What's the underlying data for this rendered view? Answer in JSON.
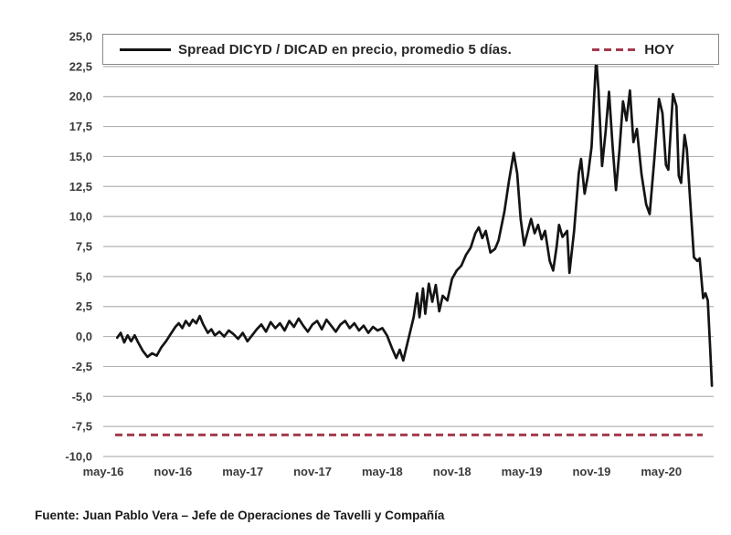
{
  "legend": {
    "series_label": "Spread DICYD / DICAD en precio, promedio 5 días.",
    "hoy_label": "HOY"
  },
  "footer": {
    "source_text": "Fuente: Juan Pablo Vera – Jefe de Operaciones de Tavelli y Compañía"
  },
  "colors": {
    "series_line": "#141414",
    "hoy_line": "#a23b4c",
    "grid_line": "#b3b3b3",
    "tick_text": "#3a3a3a",
    "legend_border": "#8a8a8a",
    "background": "#ffffff"
  },
  "chart_data": {
    "type": "line",
    "title": "",
    "xlabel": "",
    "ylabel": "",
    "grid": true,
    "legend_position": "top-inside",
    "x_axis": {
      "unit": "months since may-16",
      "range": [
        0,
        52.5
      ],
      "tick_months": [
        0,
        6,
        12,
        18,
        24,
        30,
        36,
        42,
        48
      ],
      "tick_labels": [
        "may-16",
        "nov-16",
        "may-17",
        "nov-17",
        "may-18",
        "nov-18",
        "may-19",
        "nov-19",
        "may-20"
      ]
    },
    "y_axis": {
      "range": [
        -10,
        25
      ],
      "tick_values": [
        25,
        22.5,
        20,
        17.5,
        15,
        12.5,
        10,
        7.5,
        5,
        2.5,
        0,
        -2.5,
        -5,
        -7.5,
        -10
      ],
      "tick_labels": [
        "25,0",
        "22,5",
        "20,0",
        "17,5",
        "15,0",
        "12,5",
        "10,0",
        "7,5",
        "5,0",
        "2,5",
        "0,0",
        "-2,5",
        "-5,0",
        "-7,5",
        "-10,0"
      ]
    },
    "series": [
      {
        "name": "Spread DICYD / DICAD en precio, promedio 5 días.",
        "type": "line",
        "style": "solid",
        "color": "#141414",
        "points": [
          [
            1.2,
            -0.1
          ],
          [
            1.5,
            0.3
          ],
          [
            1.8,
            -0.5
          ],
          [
            2.1,
            0.1
          ],
          [
            2.4,
            -0.4
          ],
          [
            2.7,
            0.1
          ],
          [
            3.0,
            -0.5
          ],
          [
            3.4,
            -1.2
          ],
          [
            3.8,
            -1.7
          ],
          [
            4.2,
            -1.4
          ],
          [
            4.6,
            -1.6
          ],
          [
            5.0,
            -0.9
          ],
          [
            5.4,
            -0.4
          ],
          [
            5.8,
            0.2
          ],
          [
            6.2,
            0.8
          ],
          [
            6.5,
            1.1
          ],
          [
            6.8,
            0.7
          ],
          [
            7.1,
            1.3
          ],
          [
            7.4,
            0.9
          ],
          [
            7.7,
            1.4
          ],
          [
            8.0,
            1.1
          ],
          [
            8.3,
            1.7
          ],
          [
            8.6,
            1.0
          ],
          [
            9.0,
            0.3
          ],
          [
            9.3,
            0.6
          ],
          [
            9.6,
            0.1
          ],
          [
            10.0,
            0.4
          ],
          [
            10.4,
            0.0
          ],
          [
            10.8,
            0.5
          ],
          [
            11.2,
            0.2
          ],
          [
            11.6,
            -0.2
          ],
          [
            12.0,
            0.3
          ],
          [
            12.4,
            -0.4
          ],
          [
            12.8,
            0.1
          ],
          [
            13.2,
            0.6
          ],
          [
            13.6,
            1.0
          ],
          [
            14.0,
            0.4
          ],
          [
            14.4,
            1.2
          ],
          [
            14.8,
            0.7
          ],
          [
            15.2,
            1.1
          ],
          [
            15.6,
            0.5
          ],
          [
            16.0,
            1.3
          ],
          [
            16.4,
            0.8
          ],
          [
            16.8,
            1.5
          ],
          [
            17.2,
            0.9
          ],
          [
            17.6,
            0.4
          ],
          [
            18.0,
            1.0
          ],
          [
            18.4,
            1.3
          ],
          [
            18.8,
            0.6
          ],
          [
            19.2,
            1.4
          ],
          [
            19.6,
            0.9
          ],
          [
            20.0,
            0.4
          ],
          [
            20.4,
            1.0
          ],
          [
            20.8,
            1.3
          ],
          [
            21.2,
            0.7
          ],
          [
            21.6,
            1.1
          ],
          [
            22.0,
            0.5
          ],
          [
            22.4,
            0.9
          ],
          [
            22.8,
            0.3
          ],
          [
            23.2,
            0.8
          ],
          [
            23.6,
            0.5
          ],
          [
            24.0,
            0.7
          ],
          [
            24.4,
            0.1
          ],
          [
            24.8,
            -0.9
          ],
          [
            25.2,
            -1.8
          ],
          [
            25.5,
            -1.1
          ],
          [
            25.8,
            -2.0
          ],
          [
            26.1,
            -0.8
          ],
          [
            26.4,
            0.4
          ],
          [
            26.7,
            1.6
          ],
          [
            27.0,
            3.6
          ],
          [
            27.2,
            1.6
          ],
          [
            27.5,
            4.0
          ],
          [
            27.7,
            1.9
          ],
          [
            28.0,
            4.4
          ],
          [
            28.3,
            2.9
          ],
          [
            28.6,
            4.3
          ],
          [
            28.9,
            2.1
          ],
          [
            29.2,
            3.4
          ],
          [
            29.6,
            3.0
          ],
          [
            30.0,
            4.8
          ],
          [
            30.4,
            5.5
          ],
          [
            30.8,
            5.9
          ],
          [
            31.2,
            6.8
          ],
          [
            31.6,
            7.4
          ],
          [
            32.0,
            8.6
          ],
          [
            32.3,
            9.1
          ],
          [
            32.6,
            8.2
          ],
          [
            32.9,
            8.8
          ],
          [
            33.3,
            7.0
          ],
          [
            33.7,
            7.3
          ],
          [
            34.0,
            8.0
          ],
          [
            34.5,
            10.4
          ],
          [
            34.9,
            13.0
          ],
          [
            35.3,
            15.3
          ],
          [
            35.6,
            13.6
          ],
          [
            35.9,
            9.8
          ],
          [
            36.2,
            7.6
          ],
          [
            36.5,
            8.7
          ],
          [
            36.8,
            9.8
          ],
          [
            37.1,
            8.6
          ],
          [
            37.4,
            9.3
          ],
          [
            37.7,
            8.1
          ],
          [
            38.0,
            8.8
          ],
          [
            38.4,
            6.3
          ],
          [
            38.7,
            5.5
          ],
          [
            39.0,
            7.5
          ],
          [
            39.2,
            9.3
          ],
          [
            39.5,
            8.3
          ],
          [
            39.9,
            8.8
          ],
          [
            40.1,
            5.3
          ],
          [
            40.5,
            8.8
          ],
          [
            40.9,
            13.6
          ],
          [
            41.1,
            14.8
          ],
          [
            41.4,
            11.9
          ],
          [
            41.7,
            13.5
          ],
          [
            42.0,
            15.8
          ],
          [
            42.2,
            19.5
          ],
          [
            42.4,
            23.2
          ],
          [
            42.6,
            20.5
          ],
          [
            42.9,
            14.2
          ],
          [
            43.2,
            17.0
          ],
          [
            43.5,
            20.4
          ],
          [
            43.8,
            16.0
          ],
          [
            44.1,
            12.2
          ],
          [
            44.4,
            15.5
          ],
          [
            44.7,
            19.6
          ],
          [
            45.0,
            18.0
          ],
          [
            45.3,
            20.5
          ],
          [
            45.6,
            16.2
          ],
          [
            45.9,
            17.3
          ],
          [
            46.3,
            13.5
          ],
          [
            46.7,
            11.0
          ],
          [
            47.0,
            10.2
          ],
          [
            47.4,
            14.8
          ],
          [
            47.8,
            19.8
          ],
          [
            48.1,
            18.6
          ],
          [
            48.4,
            14.3
          ],
          [
            48.6,
            13.9
          ],
          [
            49.0,
            20.2
          ],
          [
            49.3,
            19.2
          ],
          [
            49.5,
            13.4
          ],
          [
            49.7,
            12.8
          ],
          [
            50.0,
            16.8
          ],
          [
            50.2,
            15.6
          ],
          [
            50.5,
            11.0
          ],
          [
            50.8,
            6.6
          ],
          [
            51.1,
            6.3
          ],
          [
            51.3,
            6.5
          ],
          [
            51.6,
            3.2
          ],
          [
            51.8,
            3.6
          ],
          [
            52.0,
            3.0
          ],
          [
            52.2,
            -1.0
          ],
          [
            52.35,
            -4.1
          ]
        ]
      },
      {
        "name": "HOY",
        "type": "hline",
        "style": "dashed",
        "color": "#a23b4c",
        "value": -8.2
      }
    ]
  }
}
